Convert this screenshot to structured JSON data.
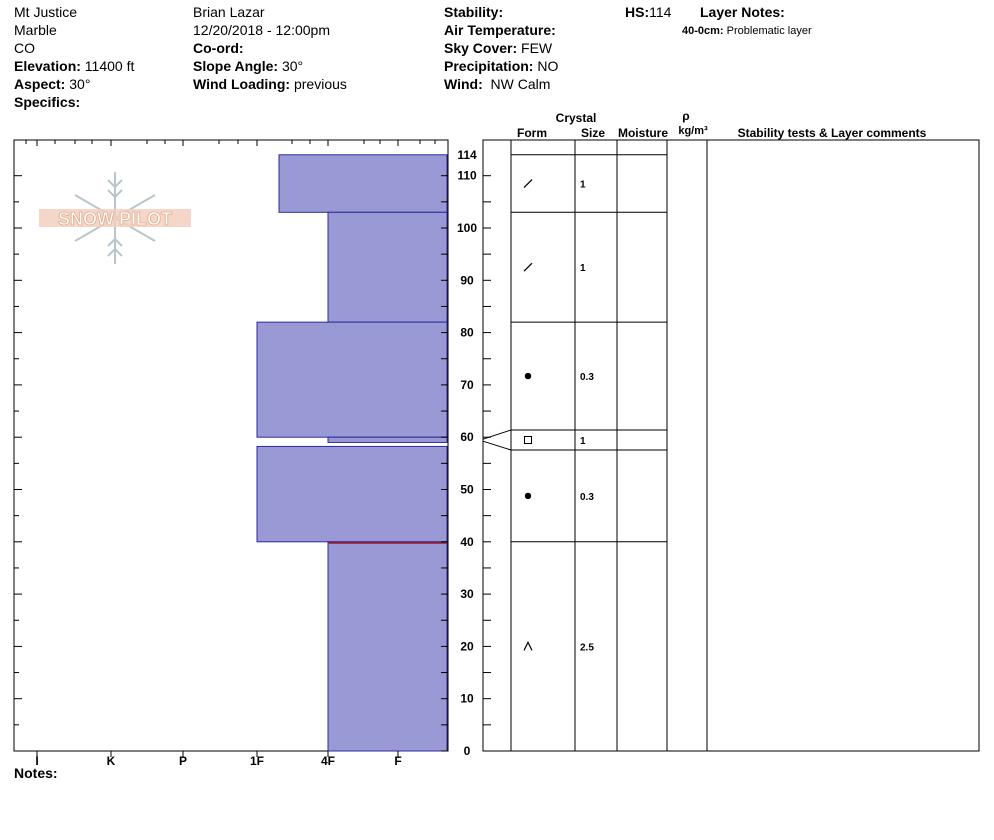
{
  "header": {
    "location": "Mt Justice",
    "range": "Marble",
    "state": "CO",
    "elevation_label": "Elevation:",
    "elevation": "11400 ft",
    "aspect_label": "Aspect:",
    "aspect": "30°",
    "specifics_label": "Specifics:",
    "observer": "Brian Lazar",
    "datetime": "12/20/2018 - 12:00pm",
    "coord_label": "Co-ord:",
    "slope_label": "Slope Angle:",
    "slope": "30°",
    "wind_loading_label": "Wind Loading:",
    "wind_loading": "previous",
    "stability_label": "Stability:",
    "air_temp_label": "Air Temperature:",
    "sky_label": "Sky Cover:",
    "sky": "FEW",
    "precip_label": "Precipitation:",
    "precip": "NO",
    "wind_label": "Wind:",
    "wind": "NW Calm",
    "hs_label": "HS:",
    "hs": "114",
    "layer_notes_label": "Layer Notes:",
    "layer_note_range": "40-0cm:",
    "layer_note_text": "Problematic layer"
  },
  "logo_text": "SNOW PILOT",
  "table_headers": {
    "crystal": "Crystal",
    "form": "Form",
    "size": "Size",
    "moisture": "Moisture",
    "rho": "ρ",
    "density_unit": "kg/m³",
    "comments": "Stability tests & Layer comments"
  },
  "notes_label": "Notes:",
  "colors": {
    "layer_fill": "#9999d6",
    "layer_stroke": "#2b2b9a",
    "problem_line": "#8a1f3a"
  },
  "chart_data": {
    "type": "bar",
    "x_axis": {
      "ticks": [
        "I",
        "K",
        "P",
        "1F",
        "4F",
        "F"
      ],
      "direction": "hardness decreasing to the right"
    },
    "y_axis": {
      "min": 0,
      "max": 114,
      "ticks": [
        0,
        10,
        20,
        30,
        40,
        50,
        60,
        70,
        80,
        90,
        100,
        110,
        114
      ],
      "unit": "cm"
    },
    "layers": [
      {
        "top": 114,
        "bottom": 103,
        "hardness": "1F-",
        "form": "decomposing",
        "size": "1"
      },
      {
        "top": 103,
        "bottom": 82,
        "hardness": "4F",
        "form": "decomposing",
        "size": "1"
      },
      {
        "top": 82,
        "bottom": 60,
        "hardness": "1F",
        "form": "rounded",
        "size": "0.3"
      },
      {
        "top": 60,
        "bottom": 59,
        "hardness": "4F",
        "form": "faceted",
        "size": "1"
      },
      {
        "top": 59,
        "bottom": 40,
        "hardness": "1F",
        "form": "rounded",
        "size": "0.3"
      },
      {
        "top": 40,
        "bottom": 0,
        "hardness": "4F",
        "form": "depth hoar",
        "size": "2.5"
      }
    ],
    "problematic_layer": {
      "top": 40,
      "bottom": 0
    }
  }
}
